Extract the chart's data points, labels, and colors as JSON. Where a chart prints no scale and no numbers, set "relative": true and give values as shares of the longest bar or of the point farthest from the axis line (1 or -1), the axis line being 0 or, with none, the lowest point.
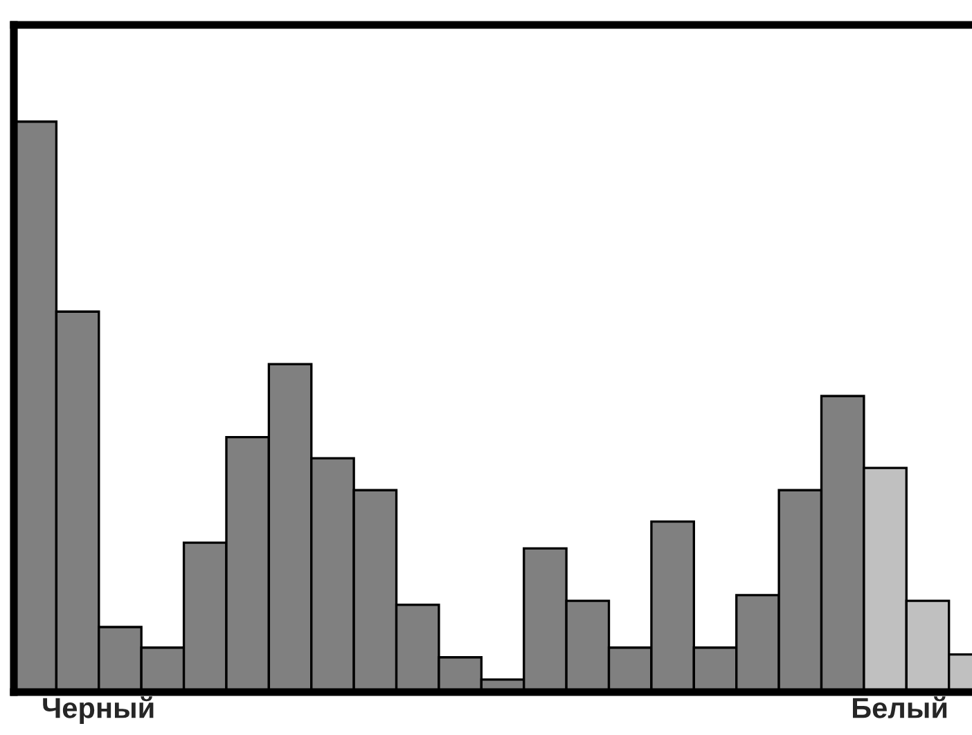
{
  "chart_data": {
    "type": "bar",
    "relative": true,
    "categories": [
      null,
      null,
      null,
      null,
      null,
      null,
      null,
      null,
      null,
      null,
      null,
      null,
      null,
      null,
      null,
      null,
      null,
      null,
      null,
      null,
      null,
      null,
      null
    ],
    "values": [
      1,
      0.667,
      0.114,
      0.078,
      0.262,
      0.447,
      0.575,
      0.41,
      0.354,
      0.153,
      0.061,
      0.022,
      0.252,
      0.16,
      0.078,
      0.299,
      0.078,
      0.17,
      0.354,
      0.519,
      0.393,
      0.16,
      0.066
    ],
    "colors": [
      "#808080",
      "#808080",
      "#808080",
      "#808080",
      "#808080",
      "#808080",
      "#808080",
      "#808080",
      "#808080",
      "#808080",
      "#808080",
      "#808080",
      "#808080",
      "#808080",
      "#808080",
      "#808080",
      "#808080",
      "#808080",
      "#808080",
      "#808080",
      "#c0c0c0",
      "#c0c0c0",
      "#c0c0c0"
    ],
    "annotations": [
      "Черный",
      "Белый"
    ],
    "grid": false,
    "legend": false
  }
}
